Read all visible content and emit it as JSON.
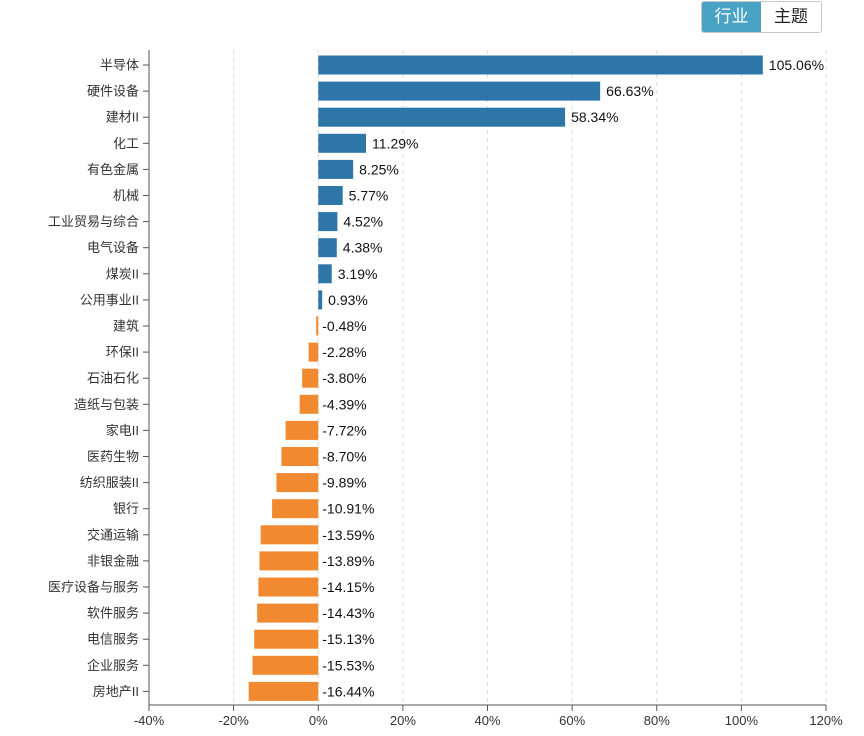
{
  "toggle": {
    "industry_label": "行业",
    "theme_label": "主题"
  },
  "colors": {
    "positive": "#2e75a8",
    "negative": "#f0892f",
    "toggle_active": "#4aa3c5"
  },
  "chart_data": {
    "type": "bar",
    "orientation": "horizontal",
    "categories": [
      "半导体",
      "硬件设备",
      "建材II",
      "化工",
      "有色金属",
      "机械",
      "工业贸易与综合",
      "电气设备",
      "煤炭II",
      "公用事业II",
      "建筑",
      "环保II",
      "石油石化",
      "造纸与包装",
      "家电II",
      "医药生物",
      "纺织服装II",
      "银行",
      "交通运输",
      "非银金融",
      "医疗设备与服务",
      "软件服务",
      "电信服务",
      "企业服务",
      "房地产II"
    ],
    "values": [
      105.06,
      66.63,
      58.34,
      11.29,
      8.25,
      5.77,
      4.52,
      4.38,
      3.19,
      0.93,
      -0.48,
      -2.28,
      -3.8,
      -4.39,
      -7.72,
      -8.7,
      -9.89,
      -10.91,
      -13.59,
      -13.89,
      -14.15,
      -14.43,
      -15.13,
      -15.53,
      -16.44
    ],
    "value_labels": [
      "105.06%",
      "66.63%",
      "58.34%",
      "11.29%",
      "8.25%",
      "5.77%",
      "4.52%",
      "4.38%",
      "3.19%",
      "0.93%",
      "-0.48%",
      "-2.28%",
      "-3.80%",
      "-4.39%",
      "-7.72%",
      "-8.70%",
      "-9.89%",
      "-10.91%",
      "-13.59%",
      "-13.89%",
      "-14.15%",
      "-14.43%",
      "-15.13%",
      "-15.53%",
      "-16.44%"
    ],
    "xlim": [
      -40,
      120
    ],
    "xticks": [
      -40,
      -20,
      0,
      20,
      40,
      60,
      80,
      100,
      120
    ],
    "xtick_labels": [
      "-40%",
      "-20%",
      "0%",
      "20%",
      "40%",
      "60%",
      "80%",
      "100%",
      "120%"
    ],
    "grid": "vertical dashed",
    "title": "",
    "xlabel": "",
    "ylabel": ""
  }
}
